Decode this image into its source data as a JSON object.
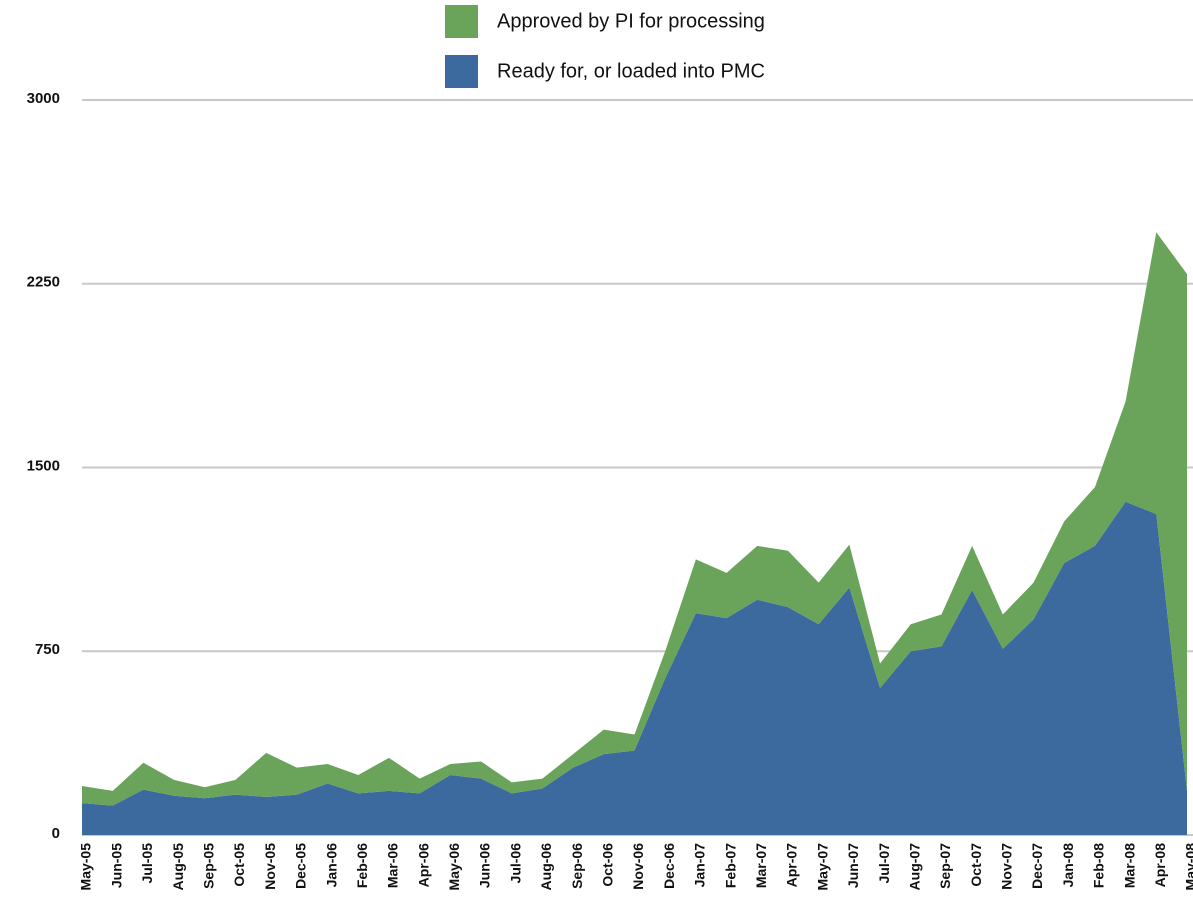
{
  "chart_data": {
    "type": "stacked_area",
    "categories": [
      "May-05",
      "Jun-05",
      "Jul-05",
      "Aug-05",
      "Sep-05",
      "Oct-05",
      "Nov-05",
      "Dec-05",
      "Jan-06",
      "Feb-06",
      "Mar-06",
      "Apr-06",
      "May-06",
      "Jun-06",
      "Jul-06",
      "Aug-06",
      "Sep-06",
      "Oct-06",
      "Nov-06",
      "Dec-06",
      "Jan-07",
      "Feb-07",
      "Mar-07",
      "Apr-07",
      "May-07",
      "Jun-07",
      "Jul-07",
      "Aug-07",
      "Sep-07",
      "Oct-07",
      "Nov-07",
      "Dec-07",
      "Jan-08",
      "Feb-08",
      "Mar-08",
      "Apr-08",
      "May-08"
    ],
    "series": [
      {
        "name": "Ready for, or loaded into PMC",
        "color": "#3d6a9e",
        "values": [
          130,
          120,
          185,
          160,
          150,
          165,
          155,
          165,
          210,
          170,
          180,
          170,
          245,
          230,
          170,
          190,
          275,
          330,
          345,
          640,
          905,
          885,
          960,
          930,
          860,
          1010,
          600,
          750,
          770,
          1000,
          760,
          880,
          1110,
          1180,
          1360,
          1310,
          180
        ]
      },
      {
        "name": "Approved by PI for processing",
        "color": "#6aa35a",
        "values": [
          70,
          60,
          110,
          65,
          45,
          60,
          180,
          110,
          80,
          75,
          135,
          60,
          45,
          70,
          45,
          40,
          55,
          100,
          65,
          110,
          220,
          185,
          220,
          230,
          170,
          175,
          100,
          110,
          130,
          180,
          140,
          150,
          170,
          240,
          410,
          1150,
          2110
        ]
      }
    ],
    "ylim": [
      0,
      3000
    ],
    "yticks": [
      0,
      750,
      1500,
      2250,
      3000
    ],
    "grid": true
  }
}
